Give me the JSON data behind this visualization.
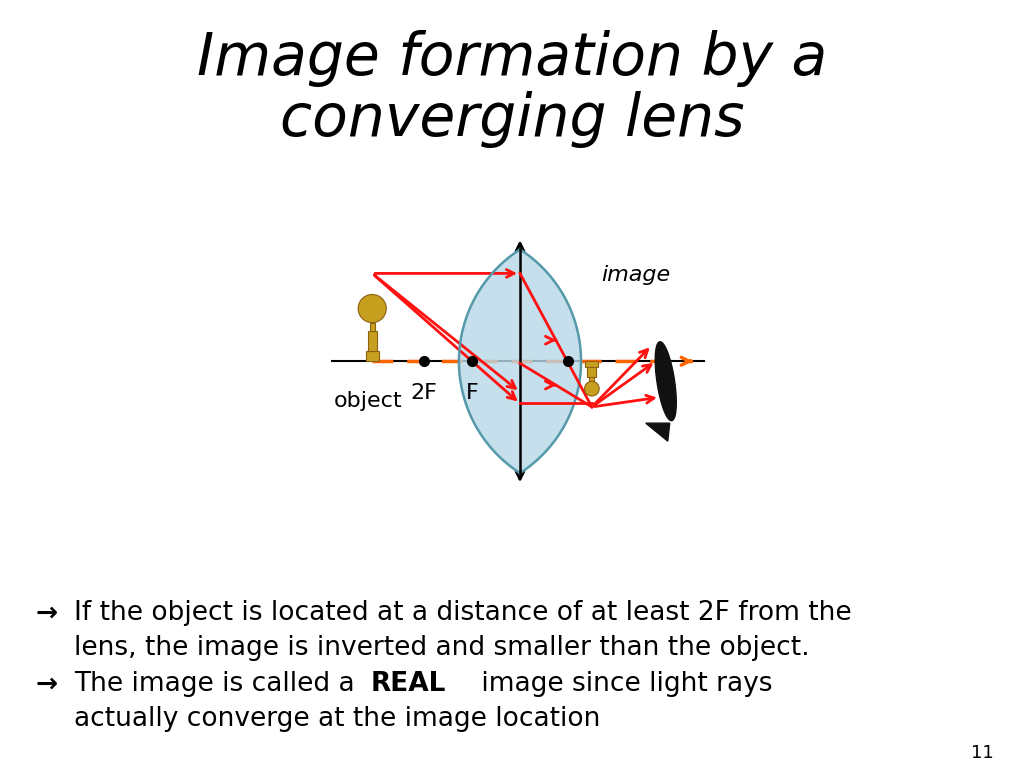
{
  "title_line1": "Image formation by a",
  "title_line2": "converging lens",
  "title_bg": "#FFD700",
  "title_color": "#000000",
  "title_fontsize": 42,
  "bg_color": "#FFFFFF",
  "ray_color": "#FF1111",
  "dashed_color": "#FF6600",
  "axis_color": "#000000",
  "lens_fill": "#B8D8E8",
  "lens_edge": "#5599AA",
  "pawn_gold": "#C8A020",
  "pawn_dark": "#8B6010",
  "screen_color": "#111111",
  "text_fontsize": 19,
  "slide_number": "11"
}
